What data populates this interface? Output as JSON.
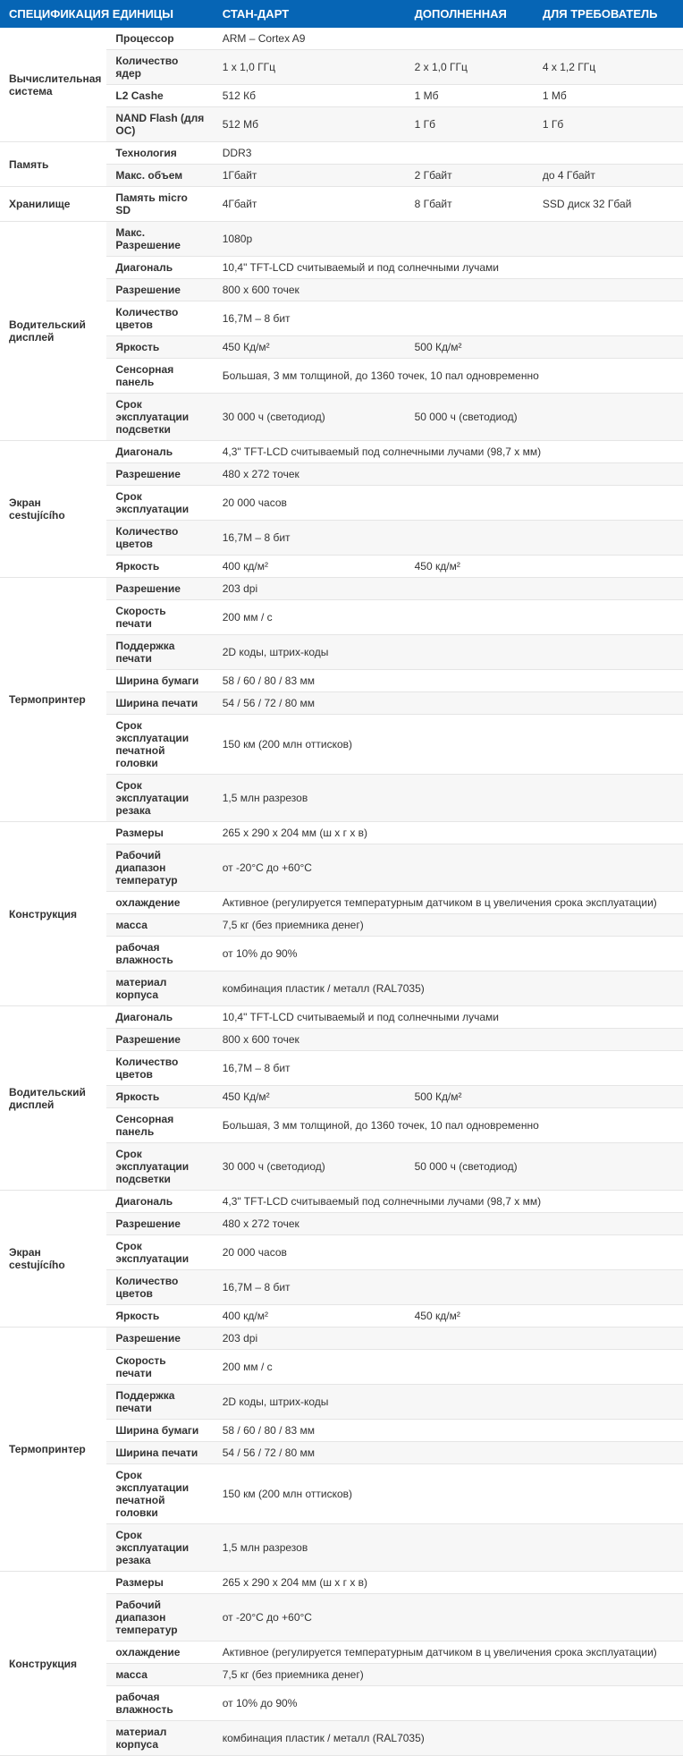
{
  "colors": {
    "header_bg": "#0665b5",
    "header_text": "#ffffff",
    "row_alt_bg": "#f7f7f7",
    "row_bg": "#ffffff",
    "border": "#e5e5e5",
    "text": "#333333"
  },
  "header": {
    "col0": "СПЕЦИФИКАЦИЯ ЕДИНИЦЫ",
    "col1": "",
    "col2": "СТАН-ДАРТ",
    "col3": "ДОПОЛНЕННАЯ",
    "col4": "ДЛЯ ТРЕБОВАТЕЛЬ"
  },
  "groups": [
    {
      "label": "Вычислительная система",
      "rows": [
        {
          "spec": "Процессор",
          "v": [
            "ARM – Cortex A9"
          ],
          "span": 3
        },
        {
          "spec": "Количество ядер",
          "v": [
            "1 x 1,0 ГГц",
            "2 x 1,0 ГГц",
            "4 x 1,2 ГГц"
          ]
        },
        {
          "spec": "L2 Cashe",
          "v": [
            "512 Кб",
            "1 Мб",
            "1 Мб"
          ]
        },
        {
          "spec": "NAND Flash (для ОС)",
          "v": [
            "512 Мб",
            "1 Гб",
            "1 Гб"
          ]
        }
      ]
    },
    {
      "label": "Память",
      "rows": [
        {
          "spec": "Технология",
          "v": [
            "DDR3"
          ],
          "span": 3
        },
        {
          "spec": "Макс. объем",
          "v": [
            "1Гбайт",
            "2 Гбайт",
            "до 4 Гбайт"
          ]
        }
      ]
    },
    {
      "label": "Хранилище",
      "rows": [
        {
          "spec": "Память micro SD",
          "v": [
            "4Гбайт",
            "8 Гбайт",
            "SSD диск 32 Гбай"
          ]
        }
      ]
    },
    {
      "label": "Водительский дисплей",
      "rows": [
        {
          "spec": "Макс.    Разрешение",
          "v": [
            "1080p"
          ],
          "span": 3,
          "justify": true
        },
        {
          "spec": "Диагональ",
          "v": [
            "10,4\" TFT-LCD считываемый и под солнечными лучами"
          ],
          "span": 3
        },
        {
          "spec": "Разрешение",
          "v": [
            "800 x 600 точек"
          ],
          "span": 3
        },
        {
          "spec": "Количество цветов",
          "v": [
            "16,7M – 8 бит"
          ],
          "span": 3
        },
        {
          "spec": "Яркость",
          "v": [
            "450 Кд/м²",
            "500 Кд/м²",
            ""
          ]
        },
        {
          "spec": "Сенсорная панель",
          "v": [
            "Большая,  3  мм  толщиной,  до  1360  точек,  10  пал одновременно"
          ],
          "span": 3,
          "justify": true
        },
        {
          "spec": "Срок эксплуатации подсветки",
          "v": [
            "30 000 ч (светодиод)",
            "50 000 ч (светодиод)",
            ""
          ],
          "justify_spec": true
        }
      ]
    },
    {
      "label": "Экран cestujícího",
      "rows": [
        {
          "spec": "Диагональ",
          "v": [
            "4,3\" TFT-LCD считываемый под солнечными лучами (98,7 x мм)"
          ],
          "span": 3
        },
        {
          "spec": "Разрешение",
          "v": [
            "480 x 272 точек"
          ],
          "span": 3
        },
        {
          "spec": "Срок эксплуатации",
          "v": [
            "20 000 часов"
          ],
          "span": 3
        },
        {
          "spec": "Количество цветов",
          "v": [
            "16,7M – 8 бит"
          ],
          "span": 3
        },
        {
          "spec": "Яркость",
          "v": [
            "400 кд/м²",
            "450 кд/м²",
            ""
          ]
        }
      ]
    },
    {
      "label": "Термопринтер",
      "rows": [
        {
          "spec": "Разрешение",
          "v": [
            "203 dpi"
          ],
          "span": 3
        },
        {
          "spec": "Скорость печати",
          "v": [
            "200 мм / с"
          ],
          "span": 3
        },
        {
          "spec": "Поддержка печати",
          "v": [
            "2D коды, штрих-коды"
          ],
          "span": 3
        },
        {
          "spec": "Ширина бумаги",
          "v": [
            "58 / 60 / 80 / 83 мм"
          ],
          "span": 3
        },
        {
          "spec": "Ширина печати",
          "v": [
            "54 / 56 / 72 / 80 мм"
          ],
          "span": 3
        },
        {
          "spec": "Срок эксплуатации печатной головки",
          "v": [
            "150 км (200 млн оттисков)"
          ],
          "span": 3,
          "justify_spec": true
        },
        {
          "spec": "Срок эксплуатации резака",
          "v": [
            "1,5 млн разрезов"
          ],
          "span": 3,
          "justify_spec": true
        }
      ]
    },
    {
      "label": "Конструкция",
      "rows": [
        {
          "spec": "Размеры",
          "v": [
            "265 x 290 x 204 мм (ш x г x в)"
          ],
          "span": 3
        },
        {
          "spec": "Рабочий диапазон температур",
          "v": [
            "от -20°C до +60°C"
          ],
          "span": 3,
          "justify_spec": true
        },
        {
          "spec": "охлаждение",
          "v": [
            "Активное  (регулируется  температурным  датчиком  в  ц увеличения срока эксплуатации)"
          ],
          "span": 3,
          "justify": true
        },
        {
          "spec": "масса",
          "v": [
            "7,5 кг (без приемника денег)"
          ],
          "span": 3
        },
        {
          "spec": "рабочая влажность",
          "v": [
            "от 10% до 90%"
          ],
          "span": 3
        },
        {
          "spec": "материал корпуса",
          "v": [
            "комбинация пластик / металл (RAL7035)"
          ],
          "span": 3
        }
      ]
    },
    {
      "label": "Водительский дисплей",
      "rows": [
        {
          "spec": "Диагональ",
          "v": [
            "10,4\" TFT-LCD считываемый и под солнечными лучами"
          ],
          "span": 3
        },
        {
          "spec": "Разрешение",
          "v": [
            "800 x 600 точек"
          ],
          "span": 3
        },
        {
          "spec": "Количество цветов",
          "v": [
            "16,7M – 8 бит"
          ],
          "span": 3
        },
        {
          "spec": "Яркость",
          "v": [
            "450 Кд/м²",
            "500 Кд/м²",
            ""
          ]
        },
        {
          "spec": "Сенсорная панель",
          "v": [
            "Большая,  3  мм  толщиной,  до  1360  точек,  10  пал одновременно"
          ],
          "span": 3,
          "justify": true
        },
        {
          "spec": "Срок эксплуатации подсветки",
          "v": [
            "30 000 ч (светодиод)",
            "50 000 ч (светодиод)",
            ""
          ],
          "justify_spec": true
        }
      ]
    },
    {
      "label": "Экран cestujícího",
      "rows": [
        {
          "spec": "Диагональ",
          "v": [
            "4,3\" TFT-LCD считываемый под солнечными лучами (98,7 x мм)"
          ],
          "span": 3
        },
        {
          "spec": "Разрешение",
          "v": [
            "480 x 272 точек"
          ],
          "span": 3
        },
        {
          "spec": "Срок эксплуатации",
          "v": [
            "20 000 часов"
          ],
          "span": 3
        },
        {
          "spec": "Количество цветов",
          "v": [
            "16,7M – 8 бит"
          ],
          "span": 3
        },
        {
          "spec": "Яркость",
          "v": [
            "400 кд/м²",
            "450 кд/м²",
            ""
          ]
        }
      ]
    },
    {
      "label": "Термопринтер",
      "rows": [
        {
          "spec": "Разрешение",
          "v": [
            "203 dpi"
          ],
          "span": 3
        },
        {
          "spec": "Скорость печати",
          "v": [
            "200 мм / с"
          ],
          "span": 3
        },
        {
          "spec": "Поддержка печати",
          "v": [
            "2D коды, штрих-коды"
          ],
          "span": 3
        },
        {
          "spec": "Ширина бумаги",
          "v": [
            "58 / 60 / 80 / 83 мм"
          ],
          "span": 3
        },
        {
          "spec": "Ширина печати",
          "v": [
            "54 / 56 / 72 / 80 мм"
          ],
          "span": 3
        },
        {
          "spec": "Срок эксплуатации печатной головки",
          "v": [
            "150 км (200 млн оттисков)"
          ],
          "span": 3,
          "justify_spec": true
        },
        {
          "spec": "Срок эксплуатации резака",
          "v": [
            "1,5 млн разрезов"
          ],
          "span": 3,
          "justify_spec": true
        }
      ]
    },
    {
      "label": "Конструкция",
      "rows": [
        {
          "spec": "Размеры",
          "v": [
            "265 x 290 x 204 мм (ш x г x в)"
          ],
          "span": 3
        },
        {
          "spec": "Рабочий диапазон температур",
          "v": [
            "от -20°C до +60°C"
          ],
          "span": 3,
          "justify_spec": true
        },
        {
          "spec": "охлаждение",
          "v": [
            "Активное  (регулируется  температурным  датчиком  в  ц увеличения срока эксплуатации)"
          ],
          "span": 3,
          "justify": true
        },
        {
          "spec": "масса",
          "v": [
            "7,5 кг (без приемника денег)"
          ],
          "span": 3
        },
        {
          "spec": "рабочая влажность",
          "v": [
            "от 10% до 90%"
          ],
          "span": 3
        },
        {
          "spec": "материал корпуса",
          "v": [
            "комбинация пластик / металл (RAL7035)"
          ],
          "span": 3
        }
      ]
    }
  ]
}
